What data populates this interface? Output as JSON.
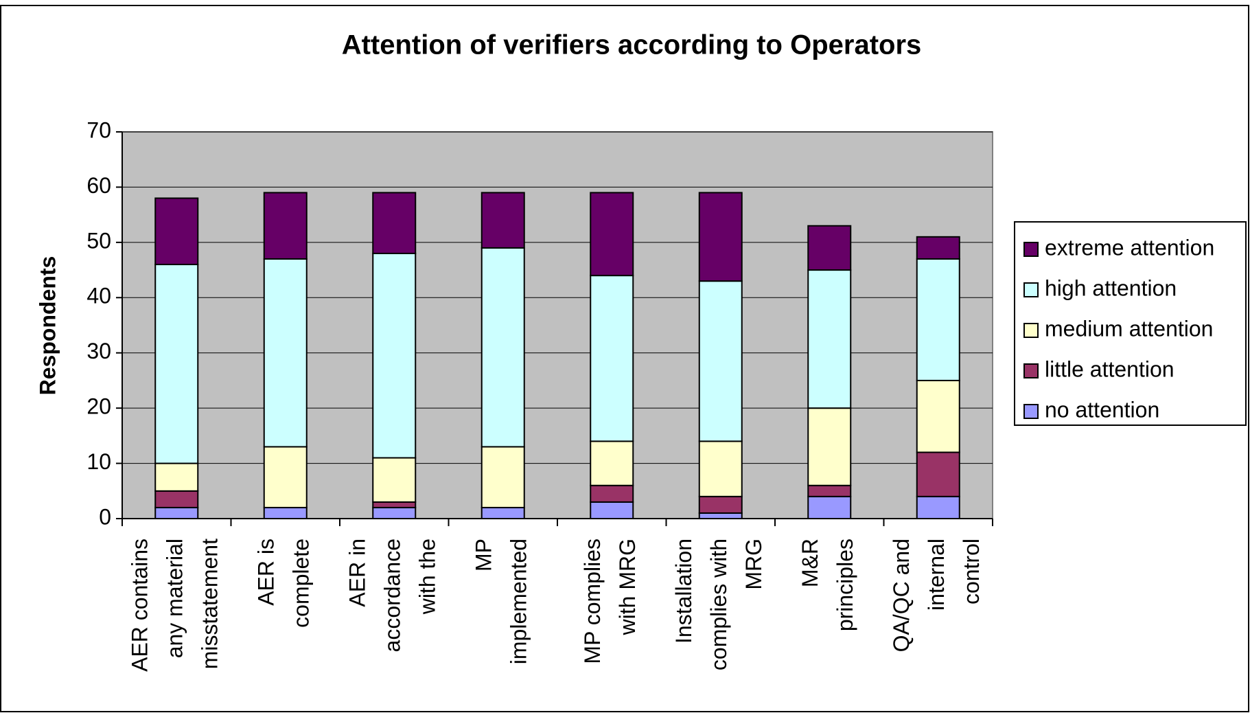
{
  "chart_data": {
    "type": "stacked-bar",
    "title": "Attention of verifiers according to Operators",
    "y_label": "Respondents",
    "categories": [
      [
        "AER contains",
        "any material",
        "misstatement"
      ],
      [
        "AER is",
        "complete"
      ],
      [
        "AER in",
        "accordance",
        "with the"
      ],
      [
        "MP",
        "implemented"
      ],
      [
        "MP complies",
        "with MRG"
      ],
      [
        "Installation",
        "complies with",
        "MRG"
      ],
      [
        "M&R",
        "principles"
      ],
      [
        "QA/QC and",
        "internal",
        "control"
      ]
    ],
    "series": [
      {
        "name": "no attention",
        "color": "#9999ff",
        "values": [
          2,
          2,
          2,
          2,
          3,
          1,
          4,
          4
        ]
      },
      {
        "name": "little attention",
        "color": "#993366",
        "values": [
          3,
          0,
          1,
          0,
          3,
          3,
          2,
          8
        ]
      },
      {
        "name": "medium attention",
        "color": "#ffffcc",
        "values": [
          5,
          11,
          8,
          11,
          8,
          10,
          14,
          13
        ]
      },
      {
        "name": "high attention",
        "color": "#ccffff",
        "values": [
          36,
          34,
          37,
          36,
          30,
          29,
          25,
          22
        ]
      },
      {
        "name": "extreme attention",
        "color": "#660066",
        "values": [
          12,
          12,
          11,
          10,
          15,
          16,
          8,
          4
        ]
      }
    ],
    "ylim": [
      0,
      70
    ],
    "yticks": [
      0,
      10,
      20,
      30,
      40,
      50,
      60,
      70
    ],
    "grid": true,
    "legend": "right"
  }
}
